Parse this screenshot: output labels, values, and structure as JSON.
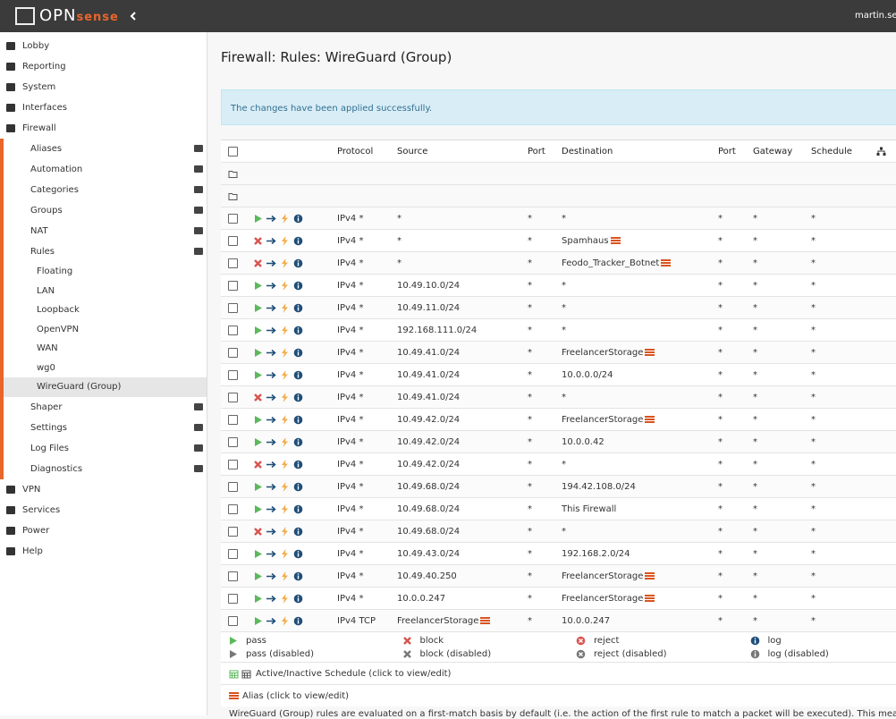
{
  "header": {
    "logo": [
      "OPN",
      "sense"
    ],
    "user": "martin.sei"
  },
  "sidebar": {
    "items": [
      {
        "label": "Lobby"
      },
      {
        "label": "Reporting"
      },
      {
        "label": "System"
      },
      {
        "label": "Interfaces"
      },
      {
        "label": "Firewall",
        "children": [
          {
            "label": "Aliases"
          },
          {
            "label": "Automation"
          },
          {
            "label": "Categories"
          },
          {
            "label": "Groups"
          },
          {
            "label": "NAT"
          },
          {
            "label": "Rules",
            "children": [
              {
                "label": "Floating"
              },
              {
                "label": "LAN"
              },
              {
                "label": "Loopback"
              },
              {
                "label": "OpenVPN"
              },
              {
                "label": "WAN"
              },
              {
                "label": "wg0"
              },
              {
                "label": "WireGuard (Group)",
                "active": true
              }
            ]
          },
          {
            "label": "Shaper"
          },
          {
            "label": "Settings"
          },
          {
            "label": "Log Files"
          },
          {
            "label": "Diagnostics"
          }
        ]
      },
      {
        "label": "VPN"
      },
      {
        "label": "Services"
      },
      {
        "label": "Power"
      },
      {
        "label": "Help"
      }
    ]
  },
  "page": {
    "title": "Firewall: Rules: WireGuard (Group)",
    "alert": "The changes have been applied successfully."
  },
  "table": {
    "headers": [
      "Protocol",
      "Source",
      "Port",
      "Destination",
      "Port",
      "Gateway",
      "Schedule"
    ],
    "folders": 2,
    "rows": [
      {
        "action": "pass",
        "protocol": "IPv4 *",
        "source": "*",
        "source_port": "*",
        "destination": "*",
        "destination_port": "*",
        "gateway": "*",
        "schedule": "*"
      },
      {
        "action": "block",
        "protocol": "IPv4 *",
        "source": "*",
        "source_port": "*",
        "destination": "Spamhaus",
        "destination_alias": true,
        "destination_port": "*",
        "gateway": "*",
        "schedule": "*"
      },
      {
        "action": "block",
        "protocol": "IPv4 *",
        "source": "*",
        "source_port": "*",
        "destination": "Feodo_Tracker_Botnet",
        "destination_alias": true,
        "destination_port": "*",
        "gateway": "*",
        "schedule": "*"
      },
      {
        "action": "pass",
        "protocol": "IPv4 *",
        "source": "10.49.10.0/24",
        "source_port": "*",
        "destination": "*",
        "destination_port": "*",
        "gateway": "*",
        "schedule": "*"
      },
      {
        "action": "pass",
        "protocol": "IPv4 *",
        "source": "10.49.11.0/24",
        "source_port": "*",
        "destination": "*",
        "destination_port": "*",
        "gateway": "*",
        "schedule": "*"
      },
      {
        "action": "pass",
        "protocol": "IPv4 *",
        "source": "192.168.111.0/24",
        "source_port": "*",
        "destination": "*",
        "destination_port": "*",
        "gateway": "*",
        "schedule": "*"
      },
      {
        "action": "pass",
        "protocol": "IPv4 *",
        "source": "10.49.41.0/24",
        "source_port": "*",
        "destination": "FreelancerStorage",
        "destination_alias": true,
        "destination_port": "*",
        "gateway": "*",
        "schedule": "*"
      },
      {
        "action": "pass",
        "protocol": "IPv4 *",
        "source": "10.49.41.0/24",
        "source_port": "*",
        "destination": "10.0.0.0/24",
        "destination_port": "*",
        "gateway": "*",
        "schedule": "*"
      },
      {
        "action": "block",
        "protocol": "IPv4 *",
        "source": "10.49.41.0/24",
        "source_port": "*",
        "destination": "*",
        "destination_port": "*",
        "gateway": "*",
        "schedule": "*"
      },
      {
        "action": "pass",
        "protocol": "IPv4 *",
        "source": "10.49.42.0/24",
        "source_port": "*",
        "destination": "FreelancerStorage",
        "destination_alias": true,
        "destination_port": "*",
        "gateway": "*",
        "schedule": "*"
      },
      {
        "action": "pass",
        "protocol": "IPv4 *",
        "source": "10.49.42.0/24",
        "source_port": "*",
        "destination": "10.0.0.42",
        "destination_port": "*",
        "gateway": "*",
        "schedule": "*"
      },
      {
        "action": "block",
        "protocol": "IPv4 *",
        "source": "10.49.42.0/24",
        "source_port": "*",
        "destination": "*",
        "destination_port": "*",
        "gateway": "*",
        "schedule": "*"
      },
      {
        "action": "pass",
        "protocol": "IPv4 *",
        "source": "10.49.68.0/24",
        "source_port": "*",
        "destination": "194.42.108.0/24",
        "destination_port": "*",
        "gateway": "*",
        "schedule": "*"
      },
      {
        "action": "pass",
        "protocol": "IPv4 *",
        "source": "10.49.68.0/24",
        "source_port": "*",
        "destination": "This Firewall",
        "destination_port": "*",
        "gateway": "*",
        "schedule": "*"
      },
      {
        "action": "block",
        "protocol": "IPv4 *",
        "source": "10.49.68.0/24",
        "source_port": "*",
        "destination": "*",
        "destination_port": "*",
        "gateway": "*",
        "schedule": "*"
      },
      {
        "action": "pass",
        "protocol": "IPv4 *",
        "source": "10.49.43.0/24",
        "source_port": "*",
        "destination": "192.168.2.0/24",
        "destination_port": "*",
        "gateway": "*",
        "schedule": "*"
      },
      {
        "action": "pass",
        "protocol": "IPv4 *",
        "source": "10.49.40.250",
        "source_port": "*",
        "destination": "FreelancerStorage",
        "destination_alias": true,
        "destination_port": "*",
        "gateway": "*",
        "schedule": "*"
      },
      {
        "action": "pass",
        "protocol": "IPv4 *",
        "source": "10.0.0.247",
        "source_port": "*",
        "destination": "FreelancerStorage",
        "destination_alias": true,
        "destination_port": "*",
        "gateway": "*",
        "schedule": "*"
      },
      {
        "action": "pass",
        "protocol": "IPv4 TCP",
        "source": "FreelancerStorage",
        "source_alias": true,
        "source_port": "*",
        "destination": "10.0.0.247",
        "destination_port": "*",
        "gateway": "*",
        "schedule": "*"
      }
    ]
  },
  "legend": {
    "items": [
      {
        "label": "pass",
        "icon": "pass"
      },
      {
        "label": "block",
        "icon": "block"
      },
      {
        "label": "reject",
        "icon": "reject"
      },
      {
        "label": "log",
        "icon": "log"
      },
      {
        "label": "pass (disabled)",
        "icon": "pass",
        "disabled": true
      },
      {
        "label": "block (disabled)",
        "icon": "block",
        "disabled": true
      },
      {
        "label": "reject (disabled)",
        "icon": "reject",
        "disabled": true
      },
      {
        "label": "log (disabled)",
        "icon": "log",
        "disabled": true
      }
    ],
    "schedule": "Active/Inactive Schedule (click to view/edit)",
    "alias": "Alias (click to view/edit)",
    "note": "WireGuard (Group) rules are evaluated on a first-match basis by default (i.e. the action of the first rule to match a packet will be executed). This means that if you use block"
  }
}
